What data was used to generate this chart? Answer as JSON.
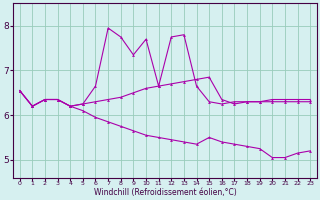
{
  "xlabel": "Windchill (Refroidissement éolien,°C)",
  "bg_color": "#d6f0f0",
  "line_color": "#aa00aa",
  "grid_color": "#99ccbb",
  "spine_color": "#440044",
  "xlim": [
    -0.5,
    23.5
  ],
  "ylim": [
    4.6,
    8.5
  ],
  "xticks": [
    0,
    1,
    2,
    3,
    4,
    5,
    6,
    7,
    8,
    9,
    10,
    11,
    12,
    13,
    14,
    15,
    16,
    17,
    18,
    19,
    20,
    21,
    22,
    23
  ],
  "yticks": [
    5,
    6,
    7,
    8
  ],
  "series": [
    {
      "x": [
        0,
        1,
        2,
        3,
        4,
        5,
        6,
        7,
        8,
        9,
        10,
        11,
        12,
        13,
        14,
        15,
        16,
        17,
        18,
        19,
        20,
        21,
        22,
        23
      ],
      "y": [
        6.55,
        6.2,
        6.35,
        6.35,
        6.2,
        6.25,
        6.65,
        7.95,
        7.75,
        7.35,
        7.7,
        6.65,
        7.75,
        7.8,
        6.65,
        6.3,
        6.25,
        6.3,
        6.3,
        6.3,
        6.35,
        6.35,
        6.35,
        6.35
      ]
    },
    {
      "x": [
        0,
        1,
        2,
        3,
        4,
        5,
        6,
        7,
        8,
        9,
        10,
        11,
        12,
        13,
        14,
        15,
        16,
        17,
        18,
        19,
        20,
        21,
        22,
        23
      ],
      "y": [
        6.55,
        6.2,
        6.35,
        6.35,
        6.2,
        6.25,
        6.3,
        6.35,
        6.4,
        6.5,
        6.6,
        6.65,
        6.7,
        6.75,
        6.8,
        6.85,
        6.35,
        6.25,
        6.3,
        6.3,
        6.3,
        6.3,
        6.3,
        6.3
      ]
    },
    {
      "x": [
        0,
        1,
        2,
        3,
        4,
        5,
        6,
        7,
        8,
        9,
        10,
        11,
        12,
        13,
        14,
        15,
        16,
        17,
        18,
        19,
        20,
        21,
        22,
        23
      ],
      "y": [
        6.55,
        6.2,
        6.35,
        6.35,
        6.2,
        6.1,
        5.95,
        5.85,
        5.75,
        5.65,
        5.55,
        5.5,
        5.45,
        5.4,
        5.35,
        5.5,
        5.4,
        5.35,
        5.3,
        5.25,
        5.05,
        5.05,
        5.15,
        5.2
      ]
    }
  ]
}
